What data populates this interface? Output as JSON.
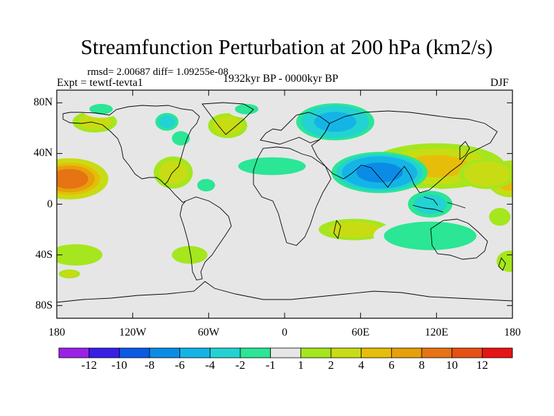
{
  "title": "Streamfunction Perturbation at 200 hPa (km2/s)",
  "stats_text": "rmsd= 2.00687 diff= 1.09255e-08",
  "experiment": "Expt = tewtf-tevta1",
  "period": "1932kyr BP - 0000kyr BP",
  "season": "DJF",
  "map": {
    "lon_range": [
      -180,
      180
    ],
    "lat_range": [
      -90,
      90
    ],
    "y_ticks": [
      {
        "lat": 80,
        "label": "80N"
      },
      {
        "lat": 40,
        "label": "40N"
      },
      {
        "lat": 0,
        "label": "0"
      },
      {
        "lat": -40,
        "label": "40S"
      },
      {
        "lat": -80,
        "label": "80S"
      }
    ],
    "x_ticks": [
      {
        "lon": -180,
        "label": "180"
      },
      {
        "lon": -120,
        "label": "120W"
      },
      {
        "lon": -60,
        "label": "60W"
      },
      {
        "lon": 0,
        "label": "0"
      },
      {
        "lon": 60,
        "label": "60E"
      },
      {
        "lon": 120,
        "label": "120E"
      },
      {
        "lon": 180,
        "label": "180"
      }
    ],
    "background_color": "#e6e6e6",
    "anomalies": [
      {
        "lon": -170,
        "lat": 20,
        "rx": 34,
        "ry": 18,
        "peak": 10
      },
      {
        "lon": 178,
        "lat": 20,
        "rx": 20,
        "ry": 16,
        "peak": 6
      },
      {
        "lon": 120,
        "lat": 30,
        "rx": 60,
        "ry": 20,
        "peak": 5
      },
      {
        "lon": 160,
        "lat": 24,
        "rx": 26,
        "ry": 14,
        "peak": 4
      },
      {
        "lon": -150,
        "lat": 65,
        "rx": 25,
        "ry": 12,
        "peak": 3
      },
      {
        "lon": -45,
        "lat": 62,
        "rx": 22,
        "ry": 14,
        "peak": 3
      },
      {
        "lon": 55,
        "lat": -20,
        "rx": 40,
        "ry": 12,
        "peak": 3
      },
      {
        "lon": 170,
        "lat": -10,
        "rx": 12,
        "ry": 10,
        "peak": 2
      },
      {
        "lon": -165,
        "lat": -40,
        "rx": 30,
        "ry": 12,
        "peak": 2
      },
      {
        "lon": -75,
        "lat": -40,
        "rx": 20,
        "ry": 10,
        "peak": 2
      },
      {
        "lon": 178,
        "lat": -45,
        "rx": 15,
        "ry": 12,
        "peak": 2
      },
      {
        "lon": -88,
        "lat": 25,
        "rx": 22,
        "ry": 18,
        "peak": 2.5
      },
      {
        "lon": 75,
        "lat": 25,
        "rx": 42,
        "ry": 18,
        "peak": -8
      },
      {
        "lon": 40,
        "lat": 65,
        "rx": 38,
        "ry": 18,
        "peak": -5
      },
      {
        "lon": 115,
        "lat": 0,
        "rx": 25,
        "ry": 15,
        "peak": -3
      },
      {
        "lon": -93,
        "lat": 65,
        "rx": 13,
        "ry": 10,
        "peak": -3
      },
      {
        "lon": -10,
        "lat": 30,
        "rx": 38,
        "ry": 10,
        "peak": -2
      },
      {
        "lon": 115,
        "lat": -25,
        "rx": 52,
        "ry": 16,
        "peak": -2
      },
      {
        "lon": -30,
        "lat": 75,
        "rx": 18,
        "ry": 8,
        "peak": -1.8
      },
      {
        "lon": -82,
        "lat": 52,
        "rx": 10,
        "ry": 8,
        "peak": -2.5
      },
      {
        "lon": -62,
        "lat": 15,
        "rx": 10,
        "ry": 7,
        "peak": -2
      },
      {
        "lon": -145,
        "lat": 75,
        "rx": 18,
        "ry": 8,
        "peak": -1.5
      },
      {
        "lon": -170,
        "lat": -55,
        "rx": 12,
        "ry": 5,
        "peak": 3
      }
    ]
  },
  "colorbar": {
    "colors": [
      "#9b21e6",
      "#3a1ee6",
      "#0a5ae6",
      "#0a8ce6",
      "#14b4e6",
      "#23d2d2",
      "#2ae695",
      "#e6e6e6",
      "#a5e61e",
      "#c8dc14",
      "#e6be0a",
      "#e6a00a",
      "#e67314",
      "#e65014",
      "#e61414"
    ],
    "labels": [
      "-12",
      "-10",
      "-8",
      "-6",
      "-4",
      "-2",
      "-1",
      "1",
      "2",
      "4",
      "6",
      "8",
      "10",
      "12"
    ],
    "thresholds": [
      -12,
      -10,
      -8,
      -6,
      -4,
      -2,
      -1,
      1,
      2,
      4,
      6,
      8,
      10,
      12
    ]
  }
}
